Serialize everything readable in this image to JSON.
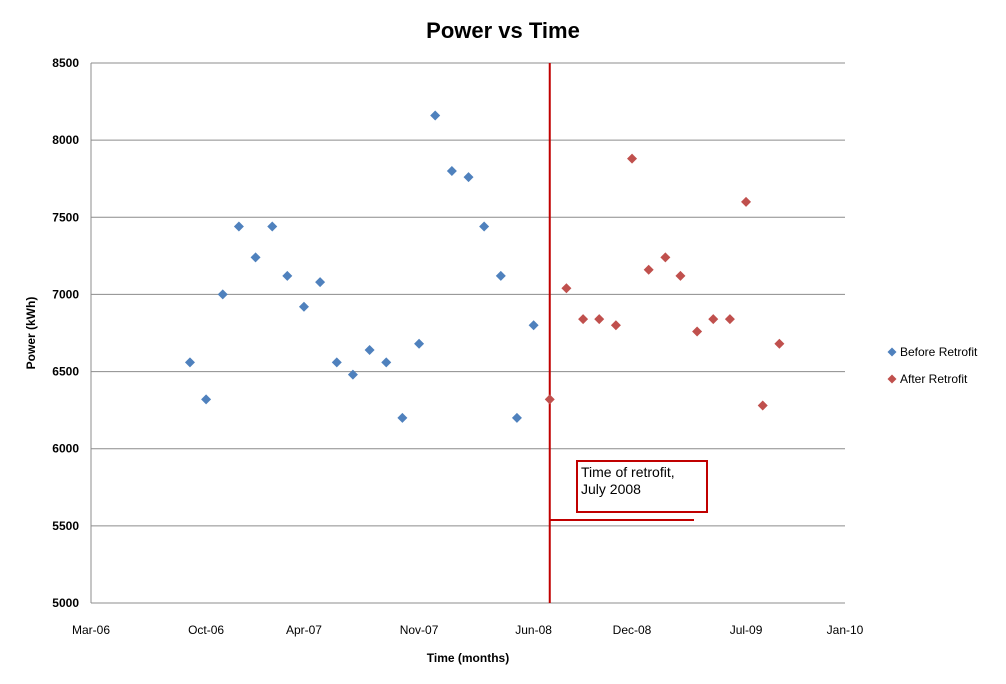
{
  "chart_data": {
    "type": "scatter",
    "title": "Power vs Time",
    "xlabel": "Time (months)",
    "ylabel": "Power (kWh)",
    "xlim": [
      "2006-03-01",
      "2010-01-01"
    ],
    "ylim": [
      5000,
      8500
    ],
    "x_ticks": [
      "Mar-06",
      "Oct-06",
      "Apr-07",
      "Nov-07",
      "Jun-08",
      "Dec-08",
      "Jul-09",
      "Jan-10"
    ],
    "x_tick_dates": [
      "2006-03-01",
      "2006-10-01",
      "2007-04-01",
      "2007-11-01",
      "2008-06-01",
      "2008-12-01",
      "2009-07-01",
      "2010-01-01"
    ],
    "y_ticks": [
      5000,
      5500,
      6000,
      6500,
      7000,
      7500,
      8000,
      8500
    ],
    "grid": "horizontal",
    "legend_position": "right",
    "series": [
      {
        "name": "Before Retrofit",
        "color": "#4F81BD",
        "marker": "diamond",
        "points": [
          {
            "x": "2006-09-01",
            "y": 6560
          },
          {
            "x": "2006-10-01",
            "y": 6320
          },
          {
            "x": "2006-11-01",
            "y": 7000
          },
          {
            "x": "2006-12-01",
            "y": 7440
          },
          {
            "x": "2007-01-01",
            "y": 7240
          },
          {
            "x": "2007-02-01",
            "y": 7440
          },
          {
            "x": "2007-03-01",
            "y": 7120
          },
          {
            "x": "2007-04-01",
            "y": 6920
          },
          {
            "x": "2007-05-01",
            "y": 7080
          },
          {
            "x": "2007-06-01",
            "y": 6560
          },
          {
            "x": "2007-07-01",
            "y": 6480
          },
          {
            "x": "2007-08-01",
            "y": 6640
          },
          {
            "x": "2007-09-01",
            "y": 6560
          },
          {
            "x": "2007-10-01",
            "y": 6200
          },
          {
            "x": "2007-11-01",
            "y": 6680
          },
          {
            "x": "2007-12-01",
            "y": 8160
          },
          {
            "x": "2008-01-01",
            "y": 7800
          },
          {
            "x": "2008-02-01",
            "y": 7760
          },
          {
            "x": "2008-03-01",
            "y": 7440
          },
          {
            "x": "2008-04-01",
            "y": 7120
          },
          {
            "x": "2008-05-01",
            "y": 6200
          },
          {
            "x": "2008-06-01",
            "y": 6800
          }
        ]
      },
      {
        "name": "After Retrofit",
        "color": "#C0504D",
        "marker": "diamond",
        "points": [
          {
            "x": "2008-07-01",
            "y": 6320
          },
          {
            "x": "2008-08-01",
            "y": 7040
          },
          {
            "x": "2008-09-01",
            "y": 6840
          },
          {
            "x": "2008-10-01",
            "y": 6840
          },
          {
            "x": "2008-11-01",
            "y": 6800
          },
          {
            "x": "2008-12-01",
            "y": 7880
          },
          {
            "x": "2009-01-01",
            "y": 7160
          },
          {
            "x": "2009-02-01",
            "y": 7240
          },
          {
            "x": "2009-03-01",
            "y": 7120
          },
          {
            "x": "2009-04-01",
            "y": 6760
          },
          {
            "x": "2009-05-01",
            "y": 6840
          },
          {
            "x": "2009-06-01",
            "y": 6840
          },
          {
            "x": "2009-07-01",
            "y": 7600
          },
          {
            "x": "2009-08-01",
            "y": 6280
          },
          {
            "x": "2009-09-01",
            "y": 6680
          }
        ]
      }
    ],
    "annotation": {
      "lines": [
        "Time of retrofit,",
        "July 2008"
      ],
      "x": "2008-07-01",
      "color": "#C00000"
    }
  }
}
